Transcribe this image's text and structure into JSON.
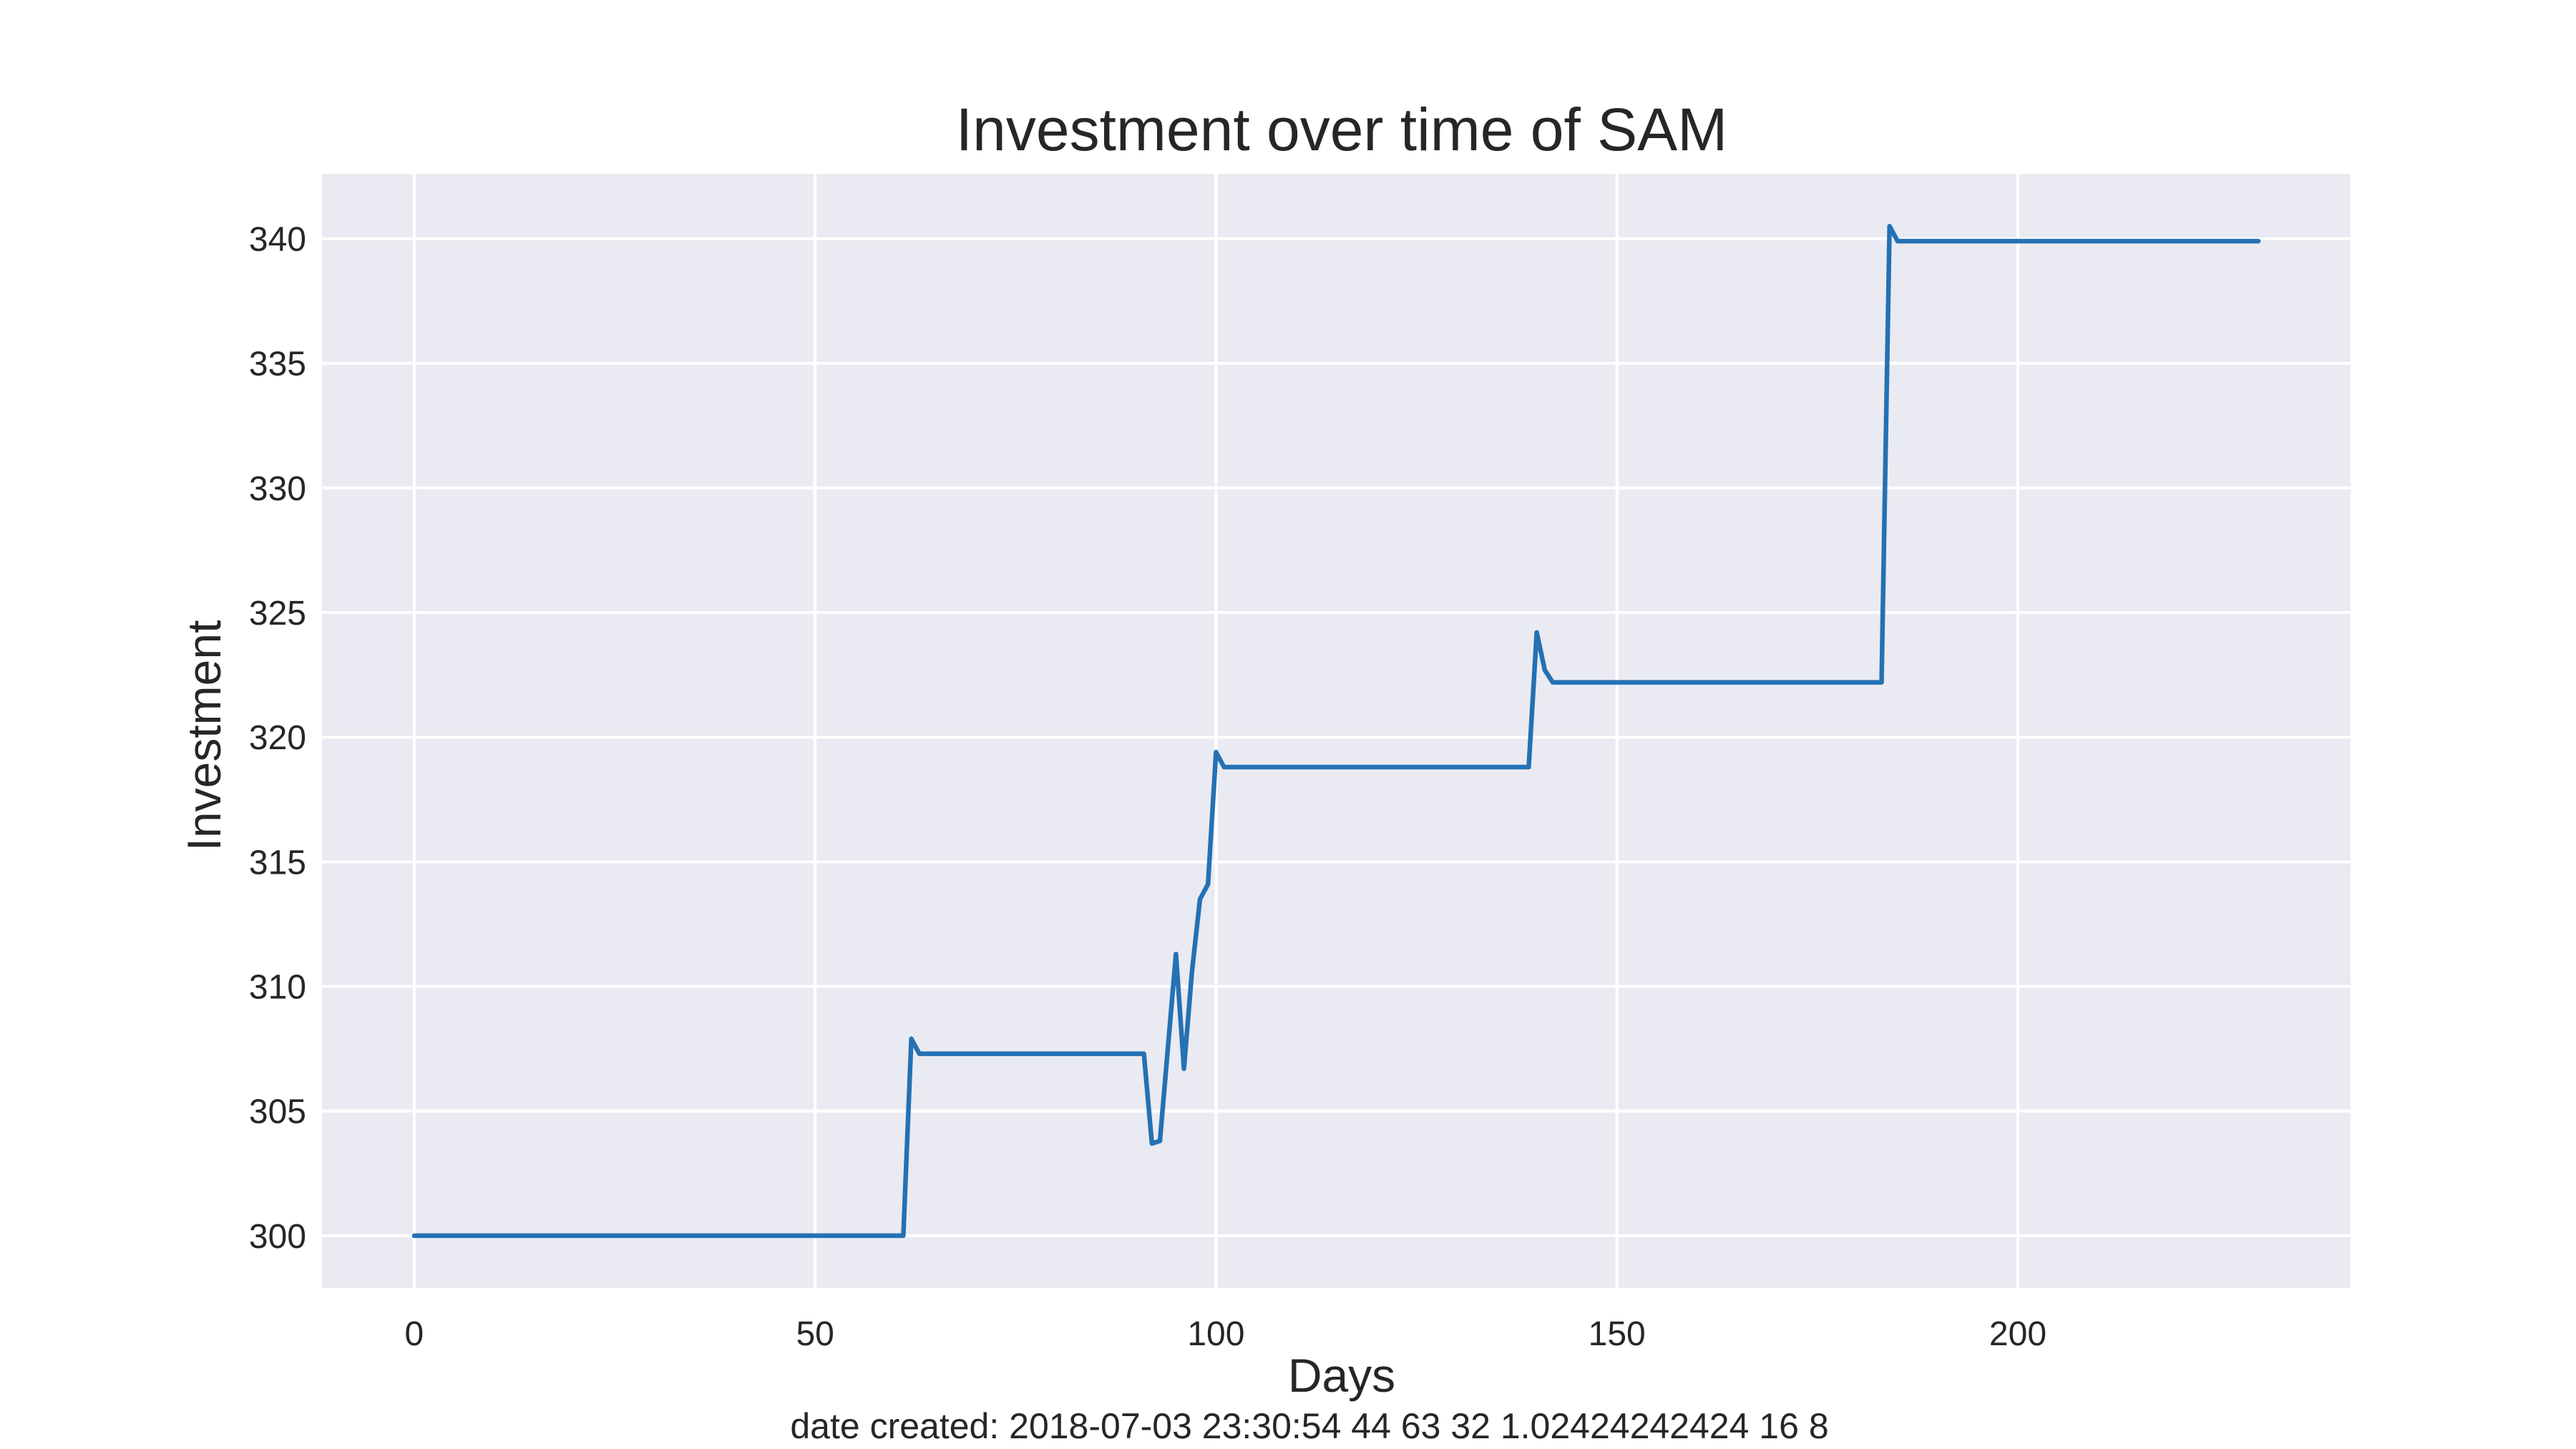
{
  "chart_data": {
    "type": "line",
    "title": "Investment over time of SAM",
    "xlabel": "Days",
    "ylabel": "Investment",
    "footnote": "date created: 2018-07-03 23:30:54 44 63 32 1.02424242424 16 8",
    "xlim": [
      -11.5,
      241.5
    ],
    "ylim": [
      297.9,
      342.6
    ],
    "xticks": [
      0,
      50,
      100,
      150,
      200
    ],
    "xtick_labels": [
      "0",
      "50",
      "100",
      "150",
      "200"
    ],
    "yticks": [
      300,
      305,
      310,
      315,
      320,
      325,
      330,
      335,
      340
    ],
    "ytick_labels": [
      "300",
      "305",
      "310",
      "315",
      "320",
      "325",
      "330",
      "335",
      "340"
    ],
    "grid": true,
    "legend": "none",
    "background_color": "#eaeaf2",
    "series": [
      {
        "color": "#2471b3",
        "x": [
          0,
          61,
          62,
          63,
          91,
          92,
          93,
          95,
          96,
          97,
          98,
          99,
          100,
          101,
          139,
          140,
          141,
          142,
          183,
          184,
          185,
          230
        ],
        "y": [
          300.0,
          300.0,
          307.9,
          307.3,
          307.3,
          303.7,
          303.8,
          311.3,
          306.7,
          310.6,
          313.5,
          314.1,
          319.4,
          318.8,
          318.8,
          324.2,
          322.7,
          322.2,
          322.2,
          340.5,
          339.9,
          339.9
        ]
      }
    ]
  }
}
